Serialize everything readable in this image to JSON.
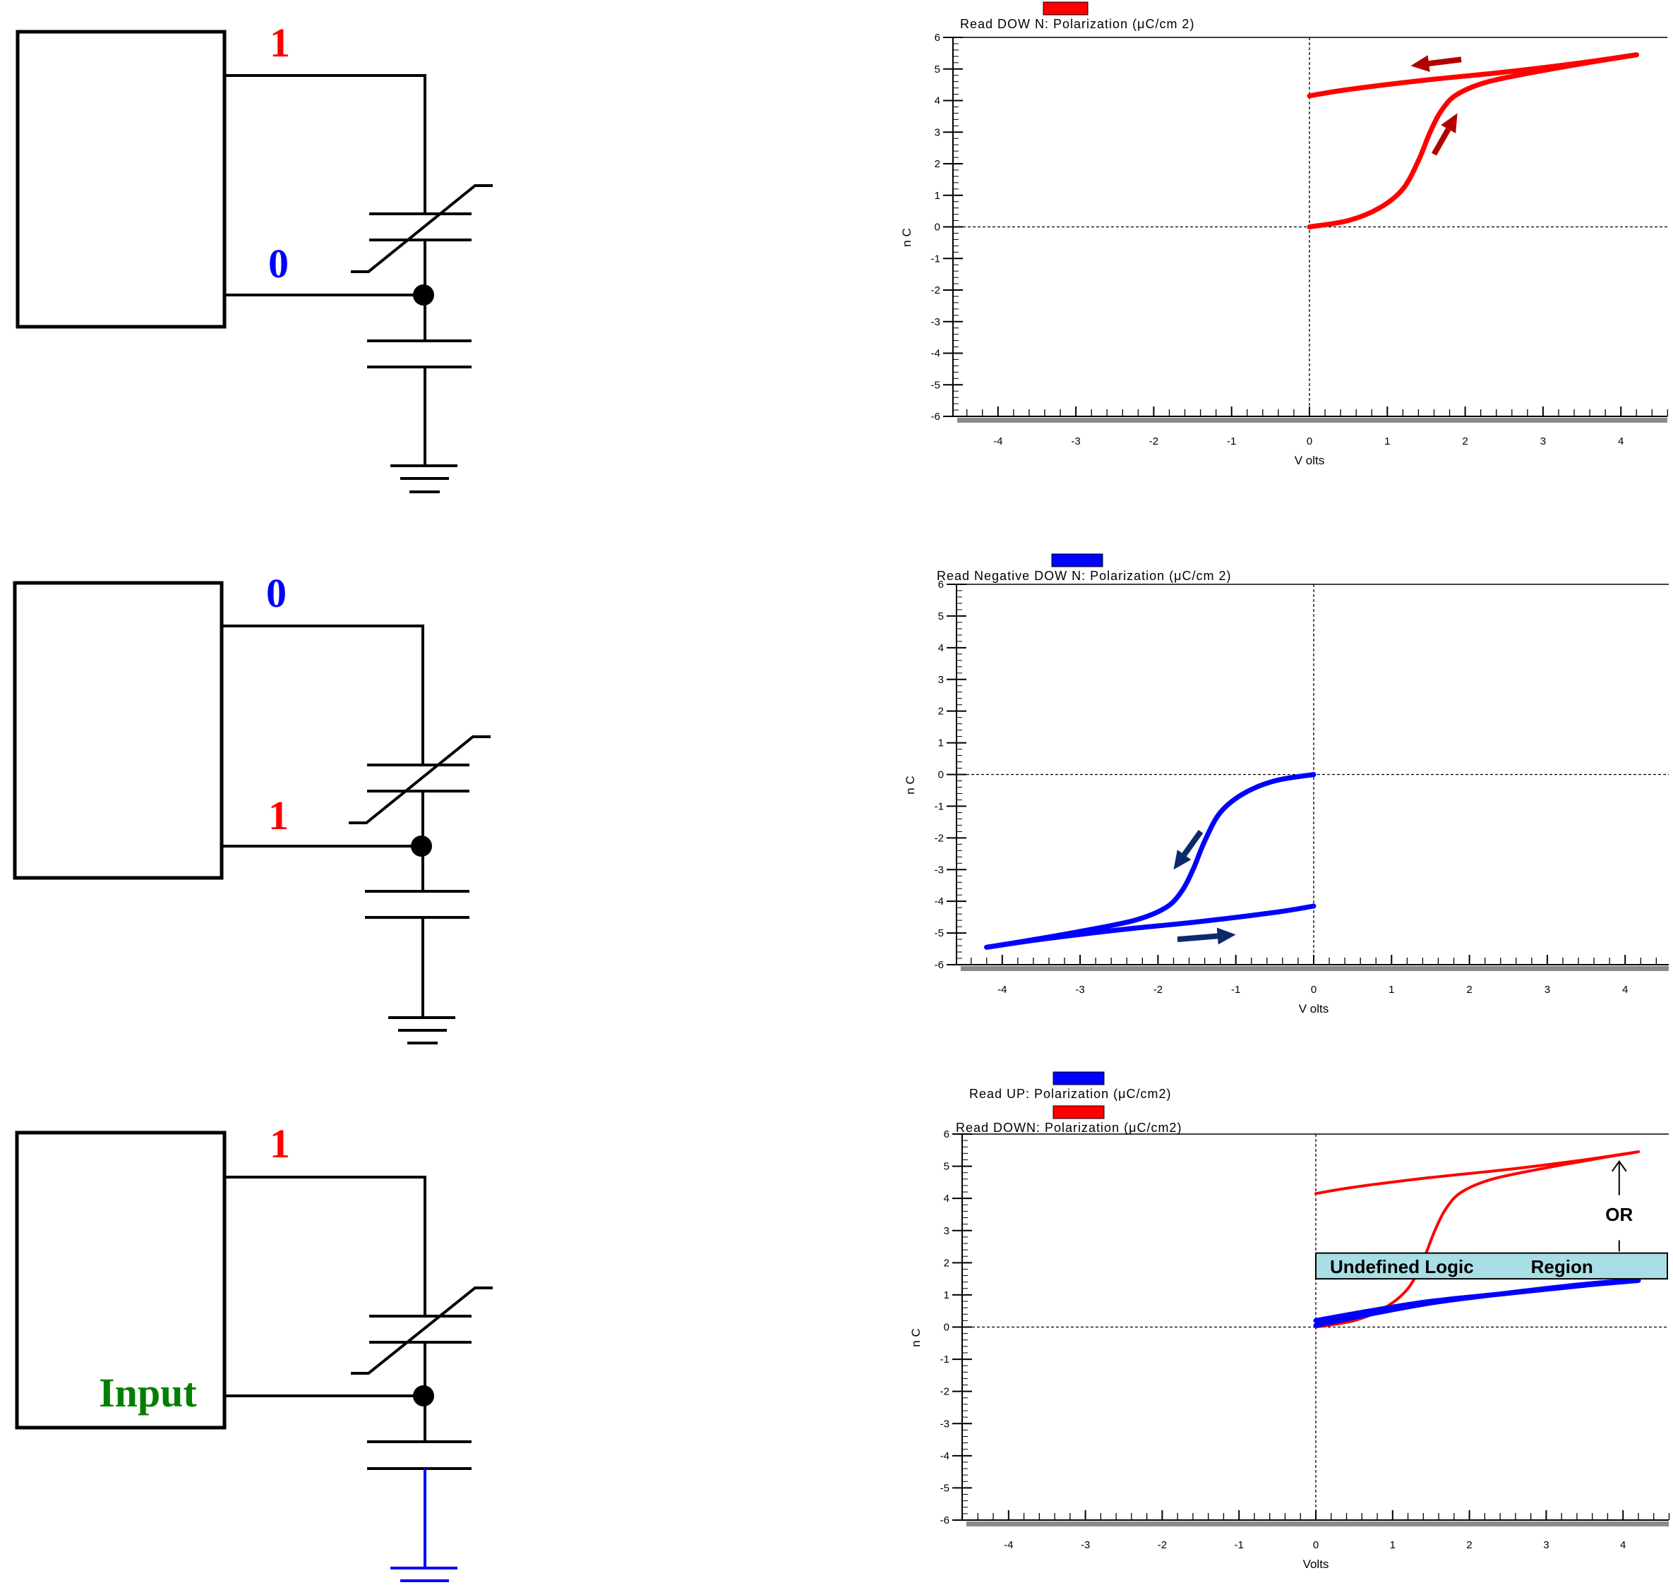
{
  "circuits": [
    {
      "top_label": "1",
      "bottom_label": "0",
      "top_color": "#ff0000",
      "bottom_color": "#0000ff"
    },
    {
      "top_label": "0",
      "bottom_label": "1",
      "top_color": "#0000ff",
      "bottom_color": "#ff0000"
    },
    {
      "top_label": "1",
      "bottom_label": "Input",
      "top_color": "#ff0000",
      "bottom_color": "#008000",
      "ground_color": "#0000ff"
    }
  ],
  "chart_data": [
    {
      "type": "line",
      "legend": [
        {
          "label": "Read DOW N: Polarization (μC/cm 2)",
          "color": "#ff0000"
        }
      ],
      "xlabel": "V olts",
      "ylabel": "n C",
      "xlim": [
        -4.5,
        4.5
      ],
      "ylim": [
        -6,
        6
      ],
      "x_ticks": [
        -4,
        -3,
        -2,
        -1,
        0,
        1,
        2,
        3,
        4
      ],
      "y_ticks": [
        6,
        5,
        4,
        3,
        2,
        1,
        0,
        -1,
        -2,
        -3,
        -4,
        -5,
        -6
      ],
      "series": [
        {
          "color": "#ff0000",
          "x": [
            0,
            0.5,
            0.9,
            1.2,
            1.4,
            1.55,
            1.7,
            1.9,
            2.3,
            3.0,
            3.7,
            4.2,
            3.5,
            2.5,
            1.5,
            0.5,
            0
          ],
          "y": [
            0,
            0.2,
            0.6,
            1.2,
            2.1,
            3.0,
            3.7,
            4.2,
            4.6,
            4.95,
            5.25,
            5.45,
            5.2,
            4.9,
            4.65,
            4.35,
            4.15
          ]
        }
      ],
      "arrows": [
        {
          "from": [
            1.6,
            2.3
          ],
          "to": [
            1.9,
            3.6
          ]
        },
        {
          "from": [
            1.95,
            5.3
          ],
          "to": [
            1.3,
            5.1
          ]
        }
      ]
    },
    {
      "type": "line",
      "legend": [
        {
          "label": "Read Negative DOW N: Polarization (μC/cm 2)",
          "color": "#0000ff"
        }
      ],
      "xlabel": "V olts",
      "ylabel": "n C",
      "xlim": [
        -4.5,
        4.5
      ],
      "ylim": [
        -6,
        6
      ],
      "x_ticks": [
        -4,
        -3,
        -2,
        -1,
        0,
        1,
        2,
        3,
        4
      ],
      "y_ticks": [
        6,
        5,
        4,
        3,
        2,
        1,
        0,
        -1,
        -2,
        -3,
        -4,
        -5,
        -6
      ],
      "series": [
        {
          "color": "#0000ff",
          "x": [
            0,
            -0.5,
            -0.9,
            -1.2,
            -1.4,
            -1.55,
            -1.7,
            -1.9,
            -2.3,
            -3.0,
            -3.7,
            -4.2,
            -3.5,
            -2.5,
            -1.5,
            -0.5,
            0
          ],
          "y": [
            0,
            -0.2,
            -0.6,
            -1.2,
            -2.1,
            -3.0,
            -3.7,
            -4.2,
            -4.6,
            -4.95,
            -5.25,
            -5.45,
            -5.2,
            -4.9,
            -4.65,
            -4.35,
            -4.15
          ]
        }
      ],
      "arrows": [
        {
          "from": [
            -1.45,
            -1.8
          ],
          "to": [
            -1.8,
            -3.0
          ]
        },
        {
          "from": [
            -1.75,
            -5.2
          ],
          "to": [
            -1.0,
            -5.05
          ]
        }
      ]
    },
    {
      "type": "line",
      "legend": [
        {
          "label": "Read UP: Polarization (μC/cm2)",
          "color": "#0000ff"
        },
        {
          "label": "Read DOWN: Polarization (μC/cm2)",
          "color": "#ff0000"
        }
      ],
      "xlabel": "Volts",
      "ylabel": "n C",
      "xlim": [
        -4.5,
        4.5
      ],
      "ylim": [
        -6,
        6
      ],
      "x_ticks": [
        -4,
        -3,
        -2,
        -1,
        0,
        1,
        2,
        3,
        4
      ],
      "y_ticks": [
        6,
        5,
        4,
        3,
        2,
        1,
        0,
        -1,
        -2,
        -3,
        -4,
        -5,
        -6
      ],
      "series": [
        {
          "color": "#ff0000",
          "x": [
            0,
            0.5,
            0.9,
            1.2,
            1.4,
            1.55,
            1.7,
            1.9,
            2.3,
            3.0,
            3.7,
            4.2,
            3.5,
            2.5,
            1.5,
            0.5,
            0
          ],
          "y": [
            0,
            0.2,
            0.6,
            1.2,
            2.1,
            3.0,
            3.7,
            4.2,
            4.6,
            4.95,
            5.25,
            5.45,
            5.2,
            4.9,
            4.65,
            4.35,
            4.15
          ]
        },
        {
          "color": "#0000ff",
          "x": [
            0,
            0.7,
            1.5,
            2.3,
            3.0,
            3.6,
            4.2,
            3.5,
            2.5,
            1.5,
            0.7,
            0
          ],
          "y": [
            0.05,
            0.4,
            0.75,
            1.0,
            1.2,
            1.35,
            1.45,
            1.3,
            1.05,
            0.8,
            0.5,
            0.2
          ]
        }
      ],
      "annotation": {
        "box_label_left": "Undefined Logic",
        "box_label_right": "Region",
        "or_label": "OR"
      }
    }
  ]
}
